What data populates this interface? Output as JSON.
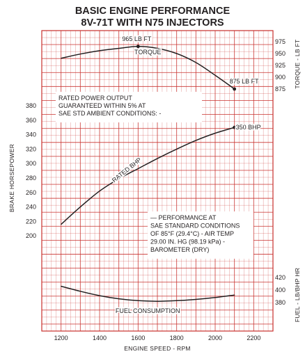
{
  "chart_data": {
    "type": "line",
    "title": "BASIC ENGINE PERFORMANCE",
    "subtitle": "8V-71T WITH N75 INJECTORS",
    "xlabel": "ENGINE SPEED - RPM",
    "xlim": [
      1100,
      2300
    ],
    "x_ticks": [
      "1200",
      "1400",
      "1600",
      "1800",
      "2000",
      "2200"
    ],
    "grid": true,
    "axes": {
      "power": {
        "label": "BRAKE HORSEPOWER",
        "side": "left",
        "range": [
          180,
          380
        ],
        "ticks": [
          "380",
          "360",
          "340",
          "320",
          "300",
          "280",
          "260",
          "240",
          "220",
          "200"
        ]
      },
      "torque": {
        "label": "TORQUE - LB FT",
        "side": "right",
        "range": [
          875,
          975
        ],
        "ticks": [
          "975",
          "950",
          "925",
          "900",
          "875"
        ]
      },
      "fuel": {
        "label": "FUEL - LB/BHP HR",
        "side": "right",
        "range": [
          370,
          430
        ],
        "ticks": [
          "420",
          "400",
          "380"
        ]
      }
    },
    "series": [
      {
        "name": "TORQUE",
        "axis": "torque",
        "x": [
          1200,
          1300,
          1400,
          1500,
          1600,
          1700,
          1800,
          1900,
          2000,
          2100
        ],
        "y": [
          940,
          949,
          956,
          961,
          965,
          961,
          950,
          931,
          904,
          875
        ],
        "peak_label": "965 LB FT",
        "end_label": "875 LB FT"
      },
      {
        "name": "RATED BHP",
        "axis": "power",
        "x": [
          1200,
          1300,
          1400,
          1500,
          1600,
          1700,
          1800,
          1900,
          2000,
          2100
        ],
        "y": [
          216,
          240,
          262,
          279,
          293,
          307,
          320,
          332,
          342,
          350
        ],
        "end_label": "350 BHP"
      },
      {
        "name": "FUEL CONSUMPTION",
        "axis": "fuel",
        "x": [
          1200,
          1300,
          1400,
          1500,
          1600,
          1700,
          1800,
          1900,
          2000,
          2100
        ],
        "y": [
          406,
          398,
          391,
          386,
          383,
          382,
          383,
          385,
          388,
          392
        ]
      }
    ],
    "annotations": [
      {
        "lines": [
          "RATED POWER OUTPUT",
          "GUARANTEED WITHIN 5% AT",
          "SAE STD AMBIENT CONDITIONS: -"
        ]
      },
      {
        "lines": [
          "— PERFORMANCE AT",
          "SAE STANDARD CONDITIONS",
          "OF 85°F (29.4°C) - AIR TEMP",
          "29.00 IN. HG (98.19 kPa) -",
          "BAROMETER (DRY)"
        ]
      }
    ],
    "colors": {
      "ink": "#231f20",
      "grid": "#c8302c",
      "background": "#ffffff"
    }
  }
}
